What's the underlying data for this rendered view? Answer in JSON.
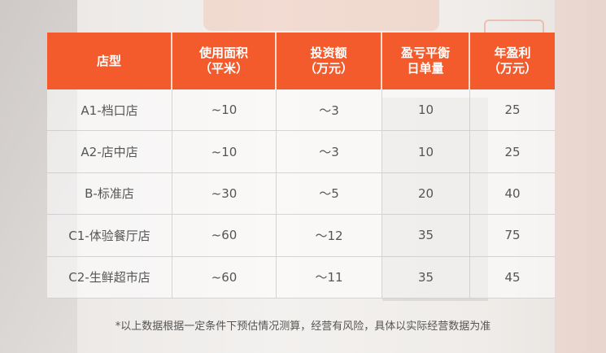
{
  "table": {
    "header": [
      [
        "店型"
      ],
      [
        "使用面积",
        "（平米）"
      ],
      [
        "投资额",
        "（万元）"
      ],
      [
        "盈亏平衡",
        "日单量"
      ],
      [
        "年盈利",
        "（万元）"
      ]
    ],
    "rows": [
      [
        "A1-档口店",
        "~10",
        "〜3",
        "10",
        "25"
      ],
      [
        "A2-店中店",
        "~10",
        "〜3",
        "10",
        "25"
      ],
      [
        "B-标准店",
        "~30",
        "〜5",
        "20",
        "40"
      ],
      [
        "C1-体验餐厅店",
        "~60",
        "〜12",
        "35",
        "75"
      ],
      [
        "C2-生鲜超市店",
        "~60",
        "〜11",
        "35",
        "45"
      ]
    ]
  },
  "note": "*以上数据根据一定条件下预估情况测算，经营有风险，具体以实际经营数据为准"
}
